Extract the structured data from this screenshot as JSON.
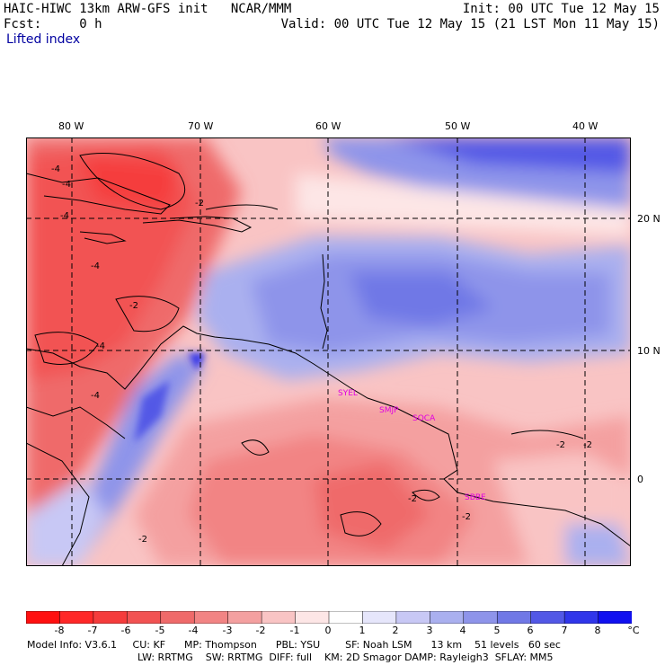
{
  "header": {
    "line1_left": "HAIC-HIWC 13km ARW-GFS init   NCAR/MMM",
    "line1_right": "Init: 00 UTC Tue 12 May 15",
    "line2_left": "Fcst:     0 h",
    "line2_right": "Valid: 00 UTC Tue 12 May 15 (21 LST Mon 11 May 15)",
    "field": "Lifted index"
  },
  "map": {
    "lon_labels": [
      "80 W",
      "70 W",
      "60 W",
      "50 W",
      "40 W"
    ],
    "lat_labels": [
      "20 N",
      "10 N",
      "0"
    ],
    "stations": [
      "SYEL",
      "SMJP",
      "SOCA",
      "SBBE"
    ],
    "contour_labels": [
      "-4",
      "-4",
      "-4",
      "-4",
      "-4",
      "-4",
      "-2",
      "-2",
      "-2",
      "-2",
      "-2",
      "-2",
      "-2"
    ]
  },
  "colorbar": {
    "ticks": [
      "-8",
      "-7",
      "-6",
      "-5",
      "-4",
      "-3",
      "-2",
      "-1",
      "0",
      "1",
      "2",
      "3",
      "4",
      "5",
      "6",
      "7",
      "8"
    ],
    "unit": "°C",
    "colors": [
      "#ff1010",
      "#ff2828",
      "#f53c3c",
      "#f25252",
      "#ef6a6a",
      "#f28484",
      "#f4a0a0",
      "#f9c4c4",
      "#fde6e6",
      "#ffffff",
      "#e6e6fb",
      "#c8c8f5",
      "#aab0ef",
      "#8e94ea",
      "#7078e6",
      "#5258e6",
      "#3036ea",
      "#1010f0"
    ]
  },
  "footer": {
    "line1": "Model Info: V3.6.1     CU: KF      MP: Thompson      PBL: YSU        SF: Noah LSM      13 km    51 levels   60 sec",
    "line2": "LW: RRTMG    SW: RRTMG  DIFF: full    KM: 2D Smagor DAMP: Rayleigh3  SFLAY: MM5"
  }
}
